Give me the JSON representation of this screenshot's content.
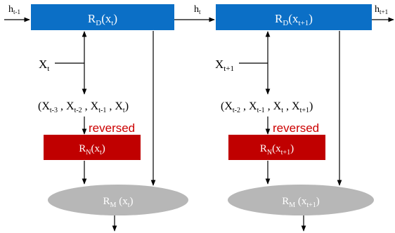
{
  "colors": {
    "rd_box": "#0b6fc6",
    "rn_box": "#c00000",
    "rm_ellipse": "#b7b7b7",
    "reversed_text": "#cc0000",
    "line": "#000000",
    "box_text": "#ffffff"
  },
  "left": {
    "h_in": {
      "main": "h",
      "sub": "t-1"
    },
    "h_out": {
      "main": "h",
      "sub": "t"
    },
    "rd": {
      "main": "R",
      "sub": "D",
      "arg": "x",
      "arg_sub": "t"
    },
    "input": {
      "main": "X",
      "sub": "t"
    },
    "seq": [
      "t-3",
      "t-2",
      "t-1",
      "t"
    ],
    "reversed": "reversed",
    "rn": {
      "main": "R",
      "sub": "N",
      "arg": "x",
      "arg_sub": "t"
    },
    "rm": {
      "main": "R",
      "sub": "M",
      "arg": "x",
      "arg_sub": "t"
    }
  },
  "right": {
    "h_out": {
      "main": "h",
      "sub": "t+1"
    },
    "rd": {
      "main": "R",
      "sub": "D",
      "arg": "x",
      "arg_sub": "t+1"
    },
    "input": {
      "main": "X",
      "sub": "t+1"
    },
    "seq": [
      "t-2",
      "t-1",
      "t",
      "t+1"
    ],
    "reversed": "reversed",
    "rn": {
      "main": "R",
      "sub": "N",
      "arg": "x",
      "arg_sub": "t+1"
    },
    "rm": {
      "main": "R",
      "sub": "M",
      "arg": "x",
      "arg_sub": "t+1"
    }
  }
}
